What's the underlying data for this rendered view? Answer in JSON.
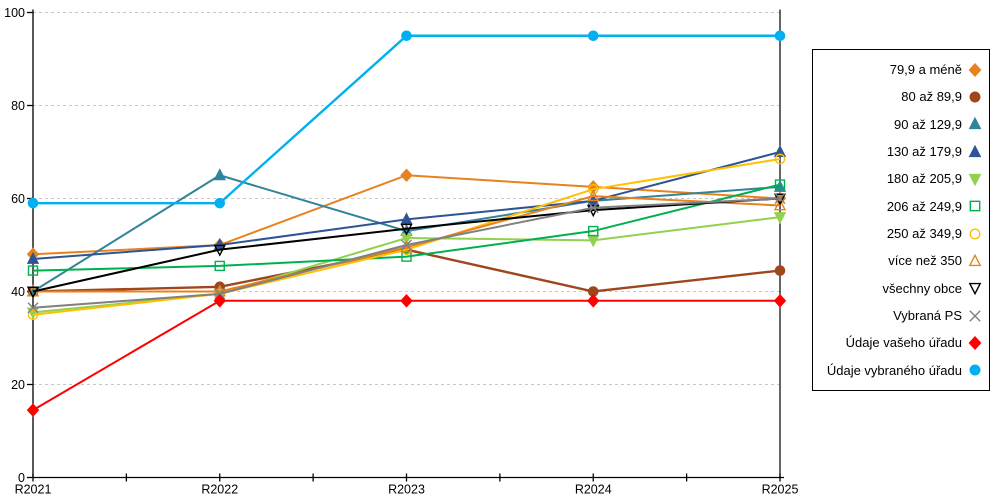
{
  "chart_data": {
    "type": "line",
    "title": "",
    "xlabel": "",
    "ylabel": "",
    "ylim": [
      0,
      100
    ],
    "y_ticks": [
      0,
      20,
      40,
      60,
      80,
      100
    ],
    "grid": "horizontal-dashed",
    "legend_position": "right",
    "selection_line_category": "R2025",
    "categories": [
      "R2021",
      "R2022",
      "R2023",
      "R2024",
      "R2025"
    ],
    "series": [
      {
        "name": "79,9 a méně",
        "color": "#E8821E",
        "marker": "diamond",
        "fill": "solid",
        "values": [
          48,
          50,
          65,
          62.5,
          60
        ]
      },
      {
        "name": "80 až 89,9",
        "color": "#A0461D",
        "marker": "circle",
        "fill": "solid",
        "values": [
          40,
          41,
          49,
          40,
          44.5
        ]
      },
      {
        "name": "90 až 129,9",
        "color": "#31849B",
        "marker": "triangle-up",
        "fill": "solid",
        "values": [
          40,
          65,
          53,
          59.5,
          62.5
        ]
      },
      {
        "name": "130 až 179,9",
        "color": "#2F5496",
        "marker": "triangle-up",
        "fill": "solid",
        "values": [
          47,
          50,
          55.5,
          59.5,
          70
        ]
      },
      {
        "name": "180 až 205,9",
        "color": "#92D050",
        "marker": "triangle-down",
        "fill": "solid",
        "values": [
          35.5,
          39.5,
          51.5,
          51,
          56
        ]
      },
      {
        "name": "206 až 249,9",
        "color": "#00B050",
        "marker": "square",
        "fill": "open",
        "values": [
          44.5,
          45.5,
          47.5,
          53,
          63
        ]
      },
      {
        "name": "250 až 349,9",
        "color": "#FFC000",
        "marker": "circle",
        "fill": "open",
        "values": [
          35,
          39.5,
          49,
          62,
          68.5
        ]
      },
      {
        "name": "více než 350",
        "color": "#E8821E",
        "marker": "triangle-up",
        "fill": "open",
        "values": [
          40,
          40,
          49.5,
          60.5,
          58.5
        ]
      },
      {
        "name": "všechny obce",
        "color": "#000000",
        "marker": "triangle-down",
        "fill": "open",
        "values": [
          40,
          49,
          53.5,
          57.5,
          60
        ]
      },
      {
        "name": "Vybraná PS",
        "color": "#808080",
        "marker": "x",
        "fill": "open",
        "values": [
          36.5,
          39.5,
          50,
          58,
          60
        ]
      },
      {
        "name": "Údaje vašeho úřadu",
        "color": "#FF0000",
        "marker": "diamond",
        "fill": "solid",
        "values": [
          14.5,
          38,
          38,
          38,
          38
        ]
      },
      {
        "name": "Údaje vybraného úřadu",
        "color": "#00B0F0",
        "marker": "circle",
        "fill": "solid",
        "values": [
          59,
          59,
          95,
          95,
          95
        ]
      }
    ]
  },
  "colors": {
    "axis": "#000000",
    "gridline": "#C8C8C8",
    "background": "#FFFFFF",
    "selection_line": "#000000"
  }
}
